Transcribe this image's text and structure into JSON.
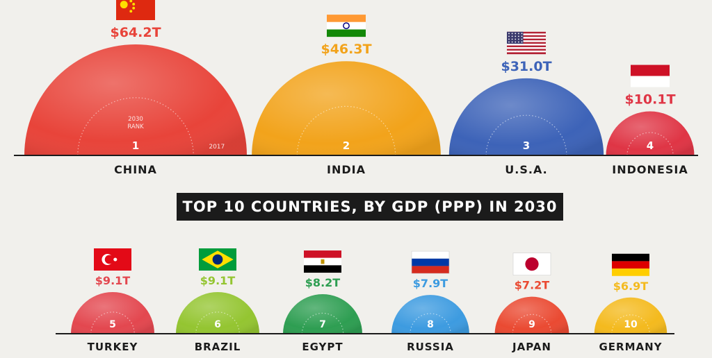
{
  "chart_data": {
    "type": "bubble-semicircle",
    "title": "TOP 10 COUNTRIES, BY GDP (PPP) IN 2030",
    "legend_labels": {
      "rank": "2030 RANK",
      "year": "2017"
    },
    "countries": [
      {
        "rank": "1",
        "name": "CHINA",
        "value": 64.2,
        "label": "$64.2T",
        "color": "#e8443a",
        "flag": "china-flag-icon"
      },
      {
        "rank": "2",
        "name": "INDIA",
        "value": 46.3,
        "label": "$46.3T",
        "color": "#f2a31b",
        "flag": "india-flag-icon"
      },
      {
        "rank": "3",
        "name": "U.S.A.",
        "value": 31.0,
        "label": "$31.0T",
        "color": "#3d63b8",
        "flag": "usa-flag-icon"
      },
      {
        "rank": "4",
        "name": "INDONESIA",
        "value": 10.1,
        "label": "$10.1T",
        "color": "#df3545",
        "flag": "indonesia-flag-icon"
      },
      {
        "rank": "5",
        "name": "TURKEY",
        "value": 9.1,
        "label": "$9.1T",
        "color": "#e3474f",
        "flag": "turkey-flag-icon"
      },
      {
        "rank": "6",
        "name": "BRAZIL",
        "value": 9.1,
        "label": "$9.1T",
        "color": "#94c531",
        "flag": "brazil-flag-icon"
      },
      {
        "rank": "7",
        "name": "EGYPT",
        "value": 8.2,
        "label": "$8.2T",
        "color": "#2e9e52",
        "flag": "egypt-flag-icon"
      },
      {
        "rank": "8",
        "name": "RUSSIA",
        "value": 7.9,
        "label": "$7.9T",
        "color": "#3d9be0",
        "flag": "russia-flag-icon"
      },
      {
        "rank": "9",
        "name": "JAPAN",
        "value": 7.2,
        "label": "$7.2T",
        "color": "#ea4a32",
        "flag": "japan-flag-icon"
      },
      {
        "rank": "10",
        "name": "GERMANY",
        "value": 6.9,
        "label": "$6.9T",
        "color": "#f4ba1e",
        "flag": "germany-flag-icon"
      }
    ]
  }
}
